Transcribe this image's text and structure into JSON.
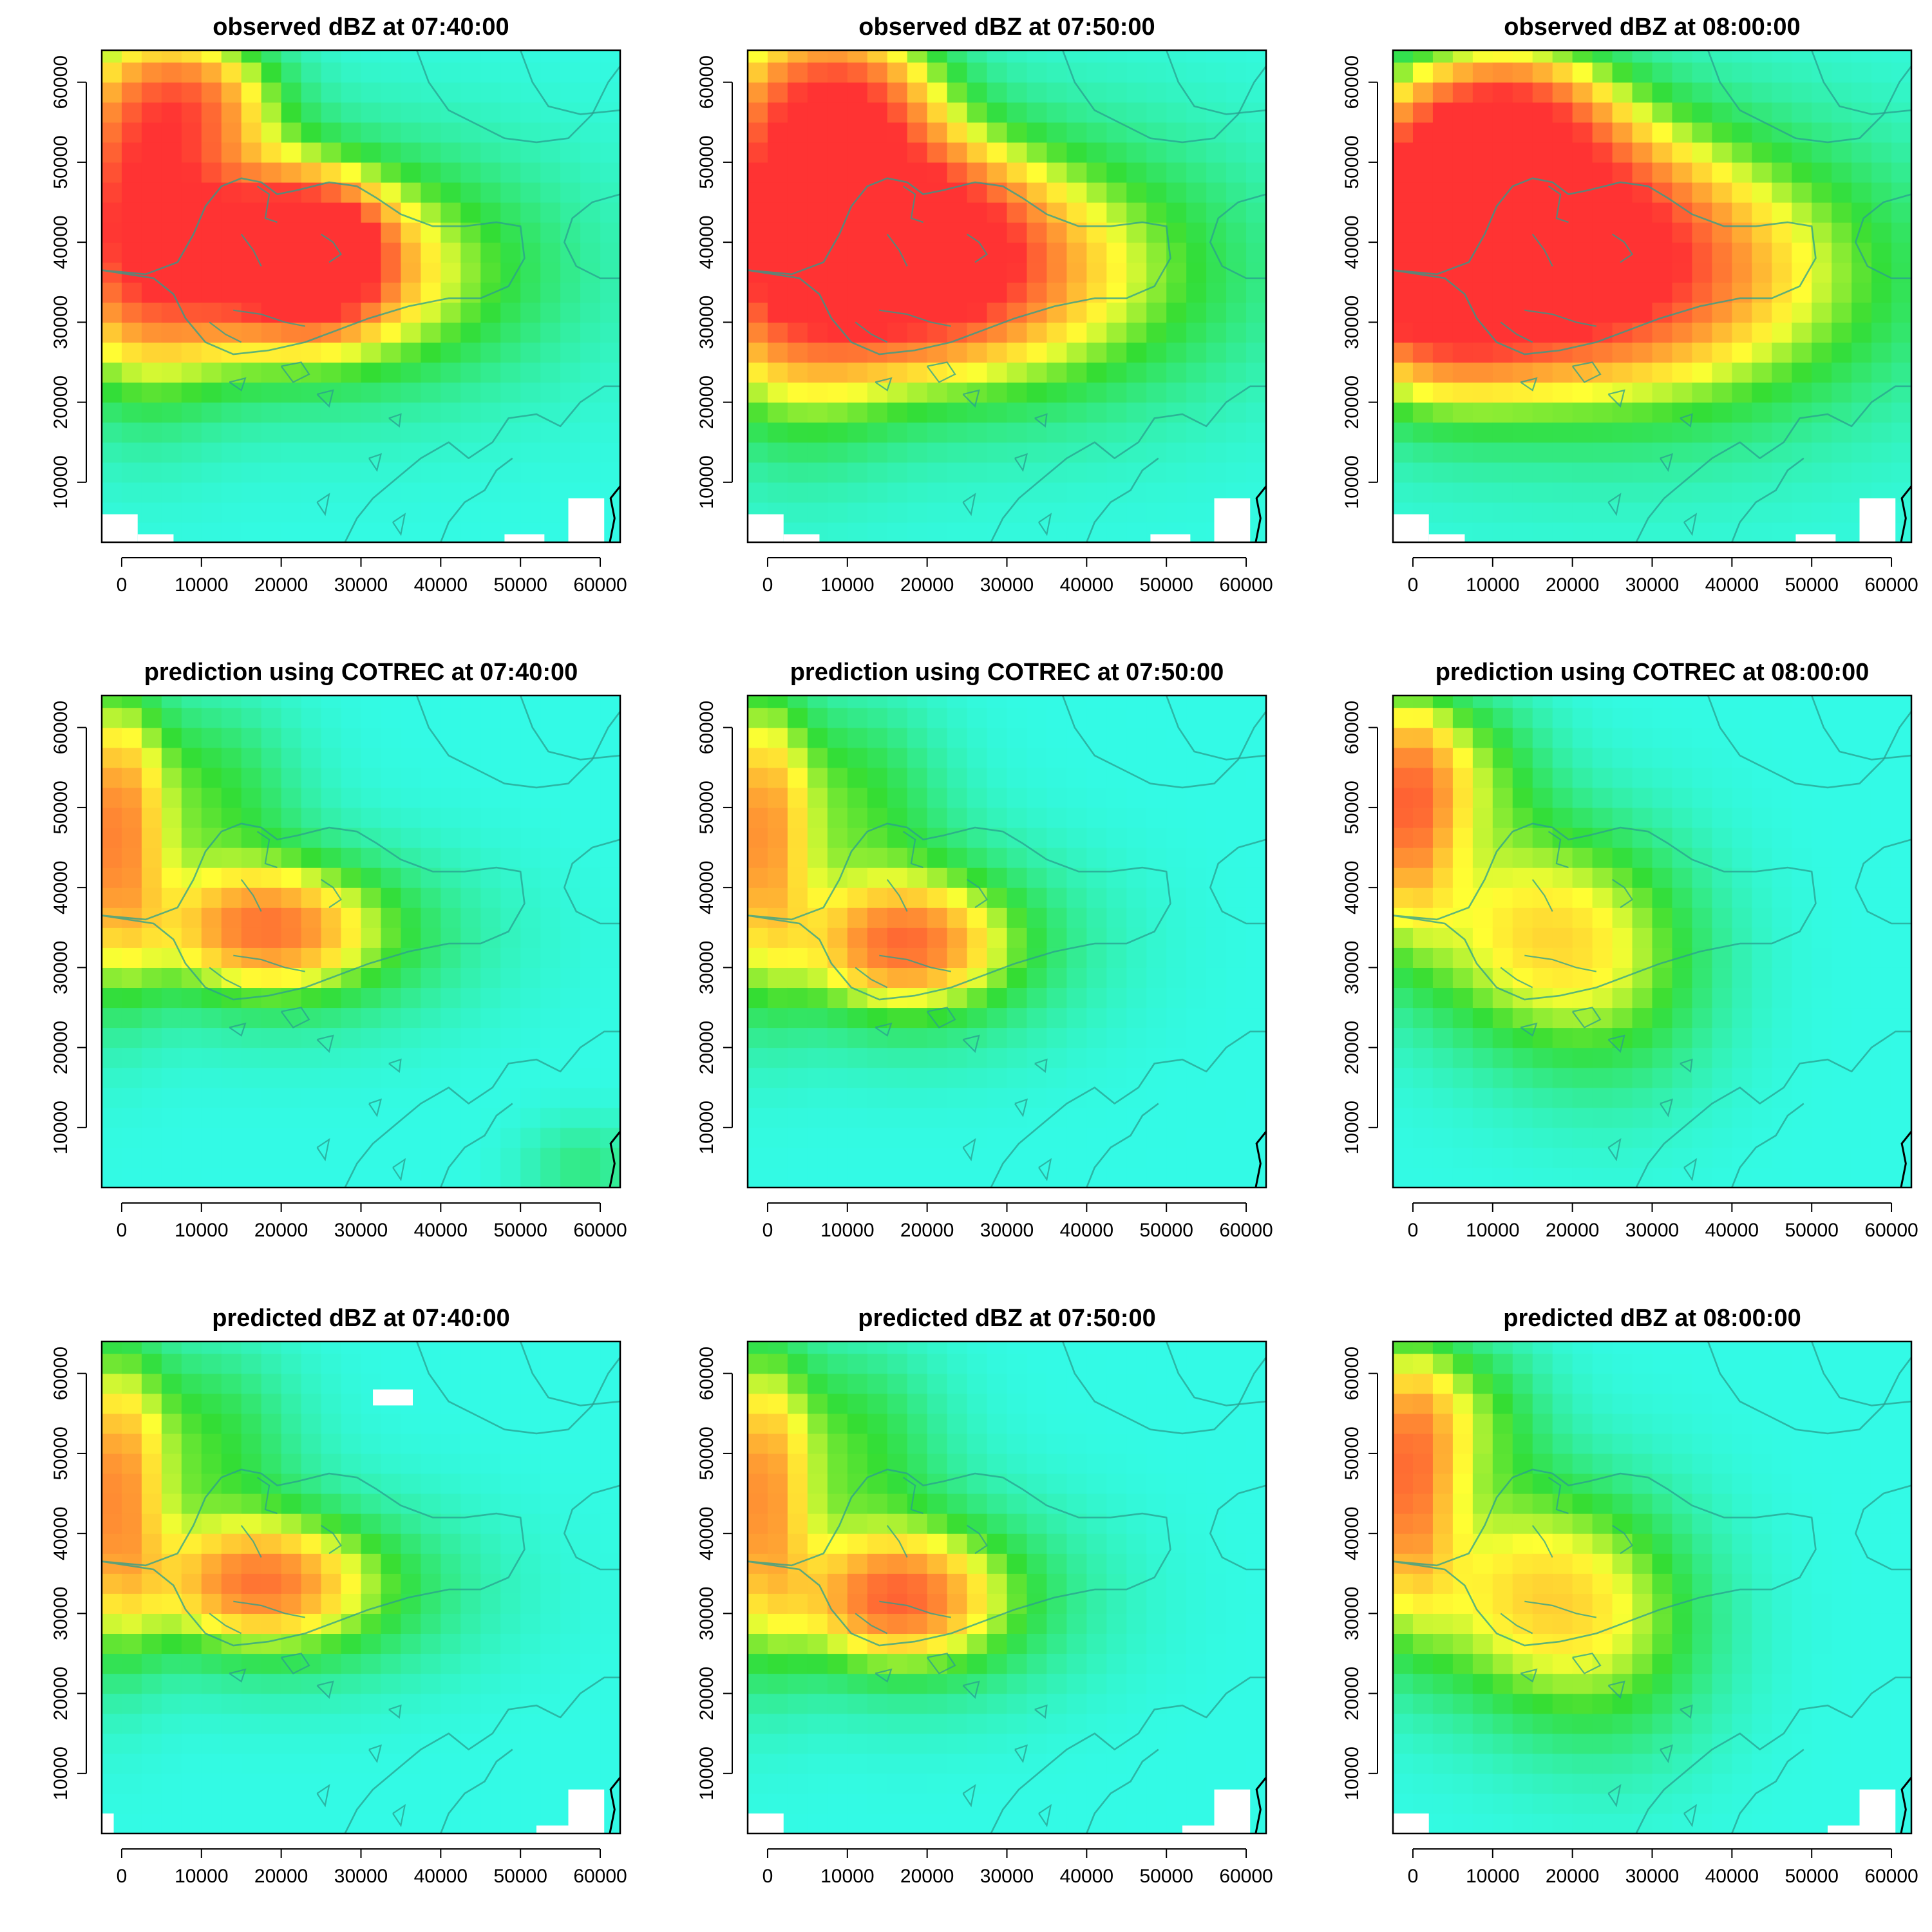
{
  "figure": {
    "colormap": "rainbow",
    "colors": {
      "lowest": "#33ffff",
      "low": "#33ee99",
      "mid_green": "#33dd33",
      "yellow": "#ffff33",
      "orange": "#ff9933",
      "red": "#ff3333",
      "coastline": "#2a9f8f",
      "missing": "#ffffff"
    }
  },
  "chart_data": [
    {
      "type": "heatmap",
      "title": "observed dBZ at 07:40:00",
      "row": 0,
      "col": 0,
      "xlim": [
        -2500,
        62500
      ],
      "ylim": [
        2500,
        64000
      ],
      "xticks": [
        0,
        10000,
        20000,
        30000,
        40000,
        50000,
        60000
      ],
      "yticks": [
        10000,
        20000,
        30000,
        40000,
        50000,
        60000
      ],
      "xlabel": "",
      "ylabel": "",
      "cells": [
        {
          "x": 2000,
          "y": 45000,
          "sx": 11000,
          "sy": 20000,
          "value": 0.82
        },
        {
          "x": 19000,
          "y": 40000,
          "sx": 11000,
          "sy": 9000,
          "value": 0.62
        },
        {
          "x": 25000,
          "y": 38000,
          "sx": 7000,
          "sy": 7000,
          "value": 0.72
        },
        {
          "x": 10000,
          "y": 58000,
          "sx": 10000,
          "sy": 8000,
          "value": 0.45
        },
        {
          "x": 27000,
          "y": 37000,
          "sx": 31000,
          "sy": 17000,
          "value": 0.28
        },
        {
          "x": 22000,
          "y": 36000,
          "sx": 20000,
          "sy": 11000,
          "value": 0.42
        }
      ],
      "missing": [
        {
          "x0": -2500,
          "x1": 2000,
          "y0": 2500,
          "y1": 6000
        },
        {
          "x0": 2000,
          "x1": 6500,
          "y0": 2500,
          "y1": 3500
        },
        {
          "x0": 48000,
          "x1": 53000,
          "y0": 2500,
          "y1": 3500
        },
        {
          "x0": 56000,
          "x1": 60500,
          "y0": 2500,
          "y1": 8000
        }
      ]
    },
    {
      "type": "heatmap",
      "title": "observed dBZ at 07:50:00",
      "row": 0,
      "col": 1,
      "xlim": [
        -2500,
        62500
      ],
      "ylim": [
        2500,
        64000
      ],
      "xticks": [
        0,
        10000,
        20000,
        30000,
        40000,
        50000,
        60000
      ],
      "yticks": [
        10000,
        20000,
        30000,
        40000,
        50000,
        60000
      ],
      "xlabel": "",
      "ylabel": "",
      "cells": [
        {
          "x": 3000,
          "y": 44000,
          "sx": 13000,
          "sy": 22000,
          "value": 0.8
        },
        {
          "x": 19000,
          "y": 40000,
          "sx": 13000,
          "sy": 11000,
          "value": 0.7
        },
        {
          "x": 11000,
          "y": 57000,
          "sx": 11000,
          "sy": 10000,
          "value": 0.55
        },
        {
          "x": 28000,
          "y": 37000,
          "sx": 35000,
          "sy": 19000,
          "value": 0.3
        },
        {
          "x": 22000,
          "y": 36000,
          "sx": 24000,
          "sy": 13000,
          "value": 0.45
        }
      ],
      "missing": [
        {
          "x0": -2500,
          "x1": 2000,
          "y0": 2500,
          "y1": 6000
        },
        {
          "x0": 2000,
          "x1": 6500,
          "y0": 2500,
          "y1": 3500
        },
        {
          "x0": 48000,
          "x1": 53000,
          "y0": 2500,
          "y1": 3500
        },
        {
          "x0": 56000,
          "x1": 60500,
          "y0": 2500,
          "y1": 8000
        }
      ]
    },
    {
      "type": "heatmap",
      "title": "observed dBZ at 08:00:00",
      "row": 0,
      "col": 2,
      "xlim": [
        -2500,
        62500
      ],
      "ylim": [
        2500,
        64000
      ],
      "xticks": [
        0,
        10000,
        20000,
        30000,
        40000,
        50000,
        60000
      ],
      "yticks": [
        10000,
        20000,
        30000,
        40000,
        50000,
        60000
      ],
      "xlabel": "",
      "ylabel": "",
      "cells": [
        {
          "x": 2000,
          "y": 40000,
          "sx": 12000,
          "sy": 15000,
          "value": 0.92
        },
        {
          "x": 14000,
          "y": 42000,
          "sx": 18000,
          "sy": 14000,
          "value": 0.78
        },
        {
          "x": 12000,
          "y": 56000,
          "sx": 12000,
          "sy": 9000,
          "value": 0.6
        },
        {
          "x": 28000,
          "y": 36000,
          "sx": 38000,
          "sy": 21000,
          "value": 0.32
        },
        {
          "x": 24000,
          "y": 36000,
          "sx": 26000,
          "sy": 14000,
          "value": 0.5
        }
      ],
      "missing": [
        {
          "x0": -2500,
          "x1": 2000,
          "y0": 2500,
          "y1": 6000
        },
        {
          "x0": 2000,
          "x1": 6500,
          "y0": 2500,
          "y1": 3500
        },
        {
          "x0": 48000,
          "x1": 53000,
          "y0": 2500,
          "y1": 3500
        },
        {
          "x0": 56000,
          "x1": 60500,
          "y0": 2500,
          "y1": 8000
        }
      ]
    },
    {
      "type": "heatmap",
      "title": "prediction using COTREC at 07:40:00",
      "row": 1,
      "col": 0,
      "xlim": [
        -2500,
        62500
      ],
      "ylim": [
        2500,
        64000
      ],
      "xticks": [
        0,
        10000,
        20000,
        30000,
        40000,
        50000,
        60000
      ],
      "yticks": [
        10000,
        20000,
        30000,
        40000,
        50000,
        60000
      ],
      "xlabel": "",
      "ylabel": "",
      "cells": [
        {
          "x": -1000,
          "y": 47000,
          "sx": 6000,
          "sy": 18000,
          "value": 0.6
        },
        {
          "x": 20000,
          "y": 34000,
          "sx": 22000,
          "sy": 11000,
          "value": 0.34
        },
        {
          "x": 18000,
          "y": 35000,
          "sx": 12000,
          "sy": 7000,
          "value": 0.42
        },
        {
          "x": 10000,
          "y": 52000,
          "sx": 12000,
          "sy": 12000,
          "value": 0.25
        },
        {
          "x": 58000,
          "y": 5000,
          "sx": 8000,
          "sy": 6000,
          "value": 0.15
        }
      ],
      "missing": []
    },
    {
      "type": "heatmap",
      "title": "prediction using COTREC at 07:50:00",
      "row": 1,
      "col": 1,
      "xlim": [
        -2500,
        62500
      ],
      "ylim": [
        2500,
        64000
      ],
      "xticks": [
        0,
        10000,
        20000,
        30000,
        40000,
        50000,
        60000
      ],
      "yticks": [
        10000,
        20000,
        30000,
        40000,
        50000,
        60000
      ],
      "xlabel": "",
      "ylabel": "",
      "cells": [
        {
          "x": -1000,
          "y": 47000,
          "sx": 6000,
          "sy": 18000,
          "value": 0.55
        },
        {
          "x": 18000,
          "y": 33000,
          "sx": 20000,
          "sy": 12000,
          "value": 0.36
        },
        {
          "x": 17000,
          "y": 33000,
          "sx": 11000,
          "sy": 7000,
          "value": 0.43
        },
        {
          "x": 10000,
          "y": 52000,
          "sx": 12000,
          "sy": 12000,
          "value": 0.25
        }
      ],
      "missing": []
    },
    {
      "type": "heatmap",
      "title": "prediction using COTREC at 08:00:00",
      "row": 1,
      "col": 2,
      "xlim": [
        -2500,
        62500
      ],
      "ylim": [
        2500,
        64000
      ],
      "xticks": [
        0,
        10000,
        20000,
        30000,
        40000,
        50000,
        60000
      ],
      "yticks": [
        10000,
        20000,
        30000,
        40000,
        50000,
        60000
      ],
      "xlabel": "",
      "ylabel": "",
      "cells": [
        {
          "x": -1000,
          "y": 50000,
          "sx": 6000,
          "sy": 14000,
          "value": 0.62
        },
        {
          "x": 12000,
          "y": 35000,
          "sx": 16000,
          "sy": 14000,
          "value": 0.38
        },
        {
          "x": 25000,
          "y": 30000,
          "sx": 14000,
          "sy": 16000,
          "value": 0.27
        },
        {
          "x": 6000,
          "y": 55000,
          "sx": 10000,
          "sy": 10000,
          "value": 0.3
        }
      ],
      "missing": []
    },
    {
      "type": "heatmap",
      "title": "predicted dBZ at 07:40:00",
      "row": 2,
      "col": 0,
      "xlim": [
        -2500,
        62500
      ],
      "ylim": [
        2500,
        64000
      ],
      "xticks": [
        0,
        10000,
        20000,
        30000,
        40000,
        50000,
        60000
      ],
      "yticks": [
        10000,
        20000,
        30000,
        40000,
        50000,
        60000
      ],
      "xlabel": "",
      "ylabel": "",
      "cells": [
        {
          "x": -1000,
          "y": 45000,
          "sx": 6000,
          "sy": 18000,
          "value": 0.58
        },
        {
          "x": 20000,
          "y": 33000,
          "sx": 22000,
          "sy": 11000,
          "value": 0.34
        },
        {
          "x": 17000,
          "y": 34000,
          "sx": 12000,
          "sy": 7000,
          "value": 0.42
        },
        {
          "x": 10000,
          "y": 52000,
          "sx": 12000,
          "sy": 12000,
          "value": 0.25
        }
      ],
      "missing": [
        {
          "x0": -2500,
          "x1": -1000,
          "y0": 2500,
          "y1": 5000
        },
        {
          "x0": 31500,
          "x1": 36500,
          "y0": 56000,
          "y1": 58000
        },
        {
          "x0": 56000,
          "x1": 60500,
          "y0": 2500,
          "y1": 8000
        },
        {
          "x0": 52000,
          "x1": 56000,
          "y0": 2500,
          "y1": 3500
        }
      ]
    },
    {
      "type": "heatmap",
      "title": "predicted dBZ at 07:50:00",
      "row": 2,
      "col": 1,
      "xlim": [
        -2500,
        62500
      ],
      "ylim": [
        2500,
        64000
      ],
      "xticks": [
        0,
        10000,
        20000,
        30000,
        40000,
        50000,
        60000
      ],
      "yticks": [
        10000,
        20000,
        30000,
        40000,
        50000,
        60000
      ],
      "xlabel": "",
      "ylabel": "",
      "cells": [
        {
          "x": -1000,
          "y": 45000,
          "sx": 6000,
          "sy": 18000,
          "value": 0.56
        },
        {
          "x": 18000,
          "y": 32000,
          "sx": 20000,
          "sy": 12000,
          "value": 0.37
        },
        {
          "x": 16000,
          "y": 32000,
          "sx": 11000,
          "sy": 7000,
          "value": 0.45
        },
        {
          "x": 10000,
          "y": 52000,
          "sx": 12000,
          "sy": 12000,
          "value": 0.25
        }
      ],
      "missing": [
        {
          "x0": -2500,
          "x1": 2000,
          "y0": 2500,
          "y1": 5000
        },
        {
          "x0": 56000,
          "x1": 60500,
          "y0": 2500,
          "y1": 8000
        },
        {
          "x0": 52000,
          "x1": 56000,
          "y0": 2500,
          "y1": 3500
        }
      ]
    },
    {
      "type": "heatmap",
      "title": "predicted dBZ at 08:00:00",
      "row": 2,
      "col": 2,
      "xlim": [
        -2500,
        62500
      ],
      "ylim": [
        2500,
        64000
      ],
      "xticks": [
        0,
        10000,
        20000,
        30000,
        40000,
        50000,
        60000
      ],
      "yticks": [
        10000,
        20000,
        30000,
        40000,
        50000,
        60000
      ],
      "xlabel": "",
      "ylabel": "",
      "cells": [
        {
          "x": -1000,
          "y": 47000,
          "sx": 6000,
          "sy": 16000,
          "value": 0.62
        },
        {
          "x": 12000,
          "y": 33000,
          "sx": 16000,
          "sy": 14000,
          "value": 0.4
        },
        {
          "x": 25000,
          "y": 28000,
          "sx": 14000,
          "sy": 16000,
          "value": 0.27
        },
        {
          "x": 6000,
          "y": 55000,
          "sx": 10000,
          "sy": 10000,
          "value": 0.3
        }
      ],
      "missing": [
        {
          "x0": -2500,
          "x1": 2000,
          "y0": 2500,
          "y1": 5000
        },
        {
          "x0": 56000,
          "x1": 60500,
          "y0": 2500,
          "y1": 8000
        },
        {
          "x0": 52000,
          "x1": 56000,
          "y0": 2500,
          "y1": 3500
        }
      ]
    }
  ]
}
